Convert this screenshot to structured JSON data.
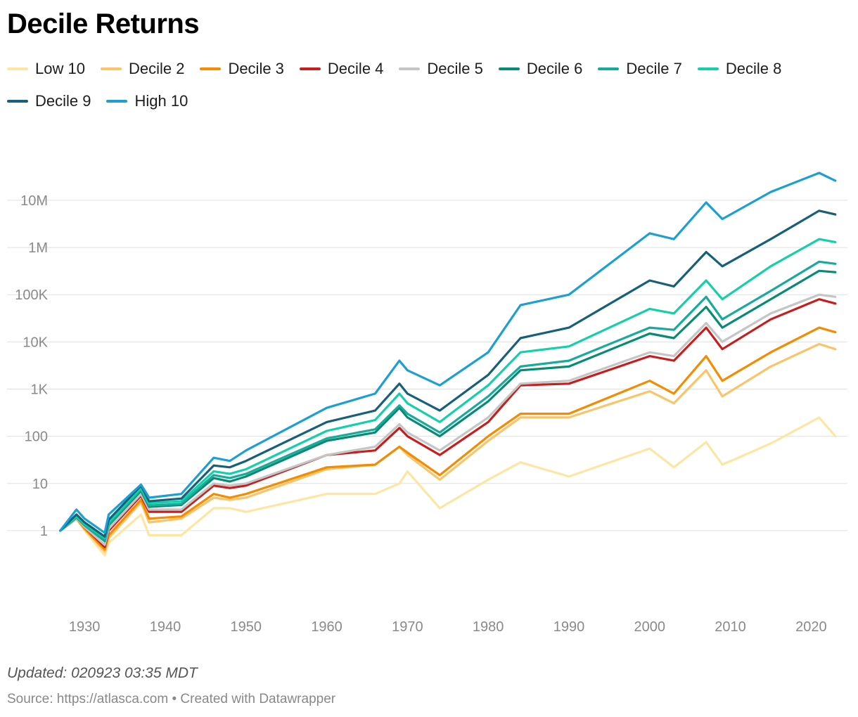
{
  "chart_data": {
    "type": "line",
    "title": "Decile Returns",
    "notes": "Updated: 020923 03:35 MDT",
    "footer": {
      "source_label": "Source: https://atlasca.com",
      "separator": "•",
      "credit": "Created with Datawrapper"
    },
    "y_scale": "log",
    "ylim": [
      0.3,
      50000000
    ],
    "y_ticks": [
      {
        "value": 1,
        "label": "1"
      },
      {
        "value": 10,
        "label": "10"
      },
      {
        "value": 100,
        "label": "100"
      },
      {
        "value": 1000,
        "label": "1K"
      },
      {
        "value": 10000,
        "label": "10K"
      },
      {
        "value": 100000,
        "label": "100K"
      },
      {
        "value": 1000000,
        "label": "1M"
      },
      {
        "value": 10000000,
        "label": "10M"
      }
    ],
    "xlim": [
      1926.5,
      2024.5
    ],
    "x_ticks": [
      {
        "value": 1930,
        "label": "1930"
      },
      {
        "value": 1940,
        "label": "1940"
      },
      {
        "value": 1950,
        "label": "1950"
      },
      {
        "value": 1960,
        "label": "1960"
      },
      {
        "value": 1970,
        "label": "1970"
      },
      {
        "value": 1980,
        "label": "1980"
      },
      {
        "value": 1990,
        "label": "1990"
      },
      {
        "value": 2000,
        "label": "2000"
      },
      {
        "value": 2010,
        "label": "2010"
      },
      {
        "value": 2020,
        "label": "2020"
      }
    ],
    "x": [
      1927,
      1929,
      1930,
      1932.5,
      1933,
      1937,
      1938,
      1942,
      1946,
      1948,
      1950,
      1960,
      1966,
      1969,
      1970,
      1974,
      1980,
      1984,
      1990,
      2000,
      2003,
      2007,
      2009,
      2015,
      2021,
      2023
    ],
    "series": [
      {
        "name": "Low 10",
        "color": "#fde6a3",
        "values": [
          1,
          1.8,
          1.0,
          0.3,
          0.55,
          2.2,
          0.8,
          0.8,
          3.0,
          3.0,
          2.5,
          6.0,
          6.0,
          10.0,
          18.0,
          3.0,
          12.0,
          28.0,
          14.0,
          55.0,
          22.0,
          75.0,
          25.0,
          70.0,
          250.0,
          100.0
        ]
      },
      {
        "name": "Decile 2",
        "color": "#f9c46a",
        "values": [
          1,
          1.8,
          1.1,
          0.36,
          0.7,
          4.0,
          1.5,
          1.8,
          5.0,
          4.5,
          5.0,
          20.0,
          25.0,
          60.0,
          40.0,
          12.0,
          80.0,
          250.0,
          250.0,
          900.0,
          500.0,
          2500.0,
          700.0,
          3000.0,
          9000.0,
          7000.0
        ]
      },
      {
        "name": "Decile 3",
        "color": "#f58b00",
        "values": [
          1,
          1.8,
          1.1,
          0.4,
          0.8,
          4.5,
          1.8,
          2.0,
          6.0,
          5.0,
          6.0,
          22.0,
          25.0,
          60.0,
          45.0,
          15.0,
          100.0,
          300.0,
          300.0,
          1500.0,
          800.0,
          5000.0,
          1500.0,
          6000.0,
          20000.0,
          16000.0
        ]
      },
      {
        "name": "Decile 4",
        "color": "#c71e1d",
        "values": [
          1,
          1.8,
          1.2,
          0.45,
          1.0,
          5.5,
          2.5,
          2.5,
          9.0,
          8.0,
          9.0,
          40.0,
          50.0,
          150.0,
          100.0,
          40.0,
          200.0,
          1200.0,
          1300.0,
          5000.0,
          4000.0,
          20000.0,
          7000.0,
          30000.0,
          80000.0,
          65000.0
        ]
      },
      {
        "name": "Decile 5",
        "color": "#c5c5c5",
        "values": [
          1,
          1.8,
          1.2,
          0.5,
          1.1,
          6.0,
          2.8,
          2.8,
          10.0,
          9.0,
          10.0,
          40.0,
          60.0,
          180.0,
          120.0,
          50.0,
          250.0,
          1300.0,
          1500.0,
          6000.0,
          5000.0,
          25000.0,
          10000.0,
          40000.0,
          100000.0,
          90000.0
        ]
      },
      {
        "name": "Decile 6",
        "color": "#078b72",
        "values": [
          1,
          1.9,
          1.3,
          0.6,
          1.3,
          7.0,
          3.2,
          3.5,
          13.0,
          11.0,
          14.0,
          80.0,
          120.0,
          400.0,
          250.0,
          100.0,
          550.0,
          2500.0,
          3000.0,
          15000.0,
          12000.0,
          55000.0,
          20000.0,
          80000.0,
          320000.0,
          300000.0
        ]
      },
      {
        "name": "Decile 7",
        "color": "#18aa9b",
        "values": [
          1,
          1.9,
          1.3,
          0.62,
          1.35,
          7.5,
          3.4,
          3.7,
          15.0,
          13.0,
          16.0,
          90.0,
          140.0,
          450.0,
          300.0,
          120.0,
          700.0,
          3000.0,
          4000.0,
          20000.0,
          18000.0,
          90000.0,
          30000.0,
          120000.0,
          500000.0,
          450000.0
        ]
      },
      {
        "name": "Decile 8",
        "color": "#14d0a8",
        "values": [
          1,
          2.0,
          1.4,
          0.7,
          1.5,
          8.0,
          3.8,
          4.2,
          18.0,
          16.0,
          20.0,
          130.0,
          220.0,
          800.0,
          500.0,
          200.0,
          1200.0,
          6000.0,
          8000.0,
          50000.0,
          40000.0,
          200000.0,
          80000.0,
          400000.0,
          1500000.0,
          1300000.0
        ]
      },
      {
        "name": "Decile 9",
        "color": "#17607a",
        "values": [
          1,
          2.2,
          1.5,
          0.75,
          1.7,
          9.0,
          4.2,
          4.8,
          24.0,
          22.0,
          30.0,
          200.0,
          350.0,
          1300.0,
          800.0,
          350.0,
          2000.0,
          12000.0,
          20000.0,
          200000.0,
          150000.0,
          800000.0,
          400000.0,
          1500000.0,
          6000000.0,
          5000000.0
        ]
      },
      {
        "name": "High 10",
        "color": "#1c9fd3",
        "values": [
          1,
          2.8,
          1.8,
          0.9,
          2.2,
          9.5,
          5.0,
          6.0,
          35.0,
          30.0,
          50.0,
          400.0,
          800.0,
          4000.0,
          2500.0,
          1200.0,
          6000.0,
          60000.0,
          100000.0,
          2000000.0,
          1500000.0,
          9000000.0,
          4000000.0,
          15000000.0,
          38000000.0,
          26000000.0
        ]
      }
    ]
  }
}
